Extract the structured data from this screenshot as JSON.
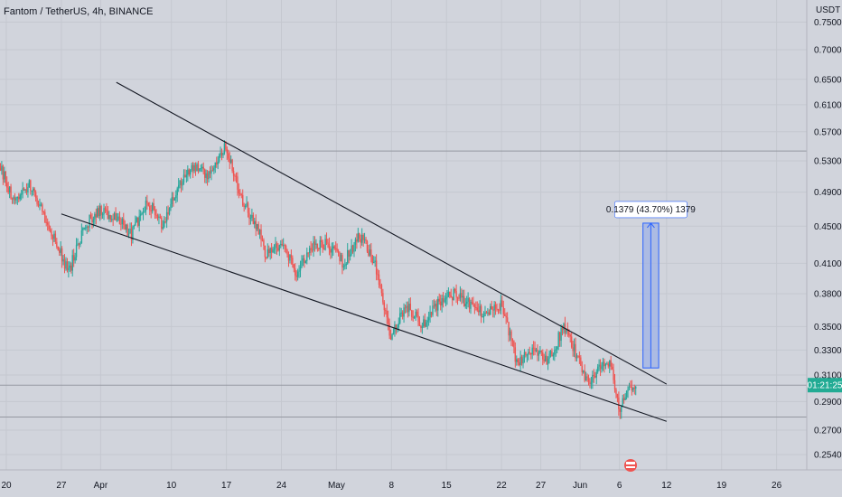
{
  "header": {
    "title": "Fantom / TetherUS, 4h, BINANCE"
  },
  "colors": {
    "background": "#d1d4dc",
    "up": "#26a69a",
    "down": "#ef5350",
    "trendline": "#131722",
    "hline": "#9598a1",
    "measure_fill": "#9cb0e6",
    "measure_stroke": "#2962ff",
    "price_label_bg": "#22ab94"
  },
  "chart_data": {
    "type": "candlestick",
    "symbol": "Fantom / TetherUS",
    "interval": "4h",
    "exchange": "BINANCE",
    "y_unit": "USDT",
    "y_scale": "log",
    "y_ticks": [
      "0.7500",
      "0.7000",
      "0.6500",
      "0.6100",
      "0.5700",
      "0.5300",
      "0.4900",
      "0.4500",
      "0.4100",
      "0.3800",
      "0.3500",
      "0.3300",
      "0.3100",
      "0.2900",
      "0.2700",
      "0.2540"
    ],
    "x_ticks": [
      {
        "label": "20",
        "date": "2022-03-20"
      },
      {
        "label": "27",
        "date": "2022-03-27"
      },
      {
        "label": "Apr",
        "date": "2022-04-01"
      },
      {
        "label": "10",
        "date": "2022-04-10"
      },
      {
        "label": "17",
        "date": "2022-04-17"
      },
      {
        "label": "24",
        "date": "2022-04-24"
      },
      {
        "label": "May",
        "date": "2022-05-01"
      },
      {
        "label": "8",
        "date": "2022-05-08"
      },
      {
        "label": "15",
        "date": "2022-05-15"
      },
      {
        "label": "22",
        "date": "2022-05-22"
      },
      {
        "label": "27",
        "date": "2022-05-27"
      },
      {
        "label": "Jun",
        "date": "2022-06-01"
      },
      {
        "label": "6",
        "date": "2022-06-06"
      },
      {
        "label": "12",
        "date": "2022-06-12"
      },
      {
        "label": "19",
        "date": "2022-06-19"
      },
      {
        "label": "26",
        "date": "2022-06-26"
      }
    ],
    "price_path": [
      [
        "2022-03-19",
        0.53
      ],
      [
        "2022-03-21",
        0.48
      ],
      [
        "2022-03-23",
        0.5
      ],
      [
        "2022-03-25",
        0.46
      ],
      [
        "2022-03-27",
        0.42
      ],
      [
        "2022-03-28",
        0.4
      ],
      [
        "2022-03-30",
        0.45
      ],
      [
        "2022-04-01",
        0.47
      ],
      [
        "2022-04-03",
        0.46
      ],
      [
        "2022-04-05",
        0.44
      ],
      [
        "2022-04-07",
        0.48
      ],
      [
        "2022-04-09",
        0.45
      ],
      [
        "2022-04-11",
        0.5
      ],
      [
        "2022-04-13",
        0.52
      ],
      [
        "2022-04-15",
        0.51
      ],
      [
        "2022-04-17",
        0.55
      ],
      [
        "2022-04-19",
        0.48
      ],
      [
        "2022-04-21",
        0.45
      ],
      [
        "2022-04-22",
        0.42
      ],
      [
        "2022-04-24",
        0.43
      ],
      [
        "2022-04-26",
        0.4
      ],
      [
        "2022-04-28",
        0.43
      ],
      [
        "2022-04-30",
        0.43
      ],
      [
        "2022-05-02",
        0.41
      ],
      [
        "2022-05-04",
        0.44
      ],
      [
        "2022-05-06",
        0.41
      ],
      [
        "2022-05-08",
        0.34
      ],
      [
        "2022-05-10",
        0.37
      ],
      [
        "2022-05-12",
        0.35
      ],
      [
        "2022-05-14",
        0.37
      ],
      [
        "2022-05-16",
        0.38
      ],
      [
        "2022-05-18",
        0.37
      ],
      [
        "2022-05-20",
        0.36
      ],
      [
        "2022-05-22",
        0.37
      ],
      [
        "2022-05-24",
        0.32
      ],
      [
        "2022-05-26",
        0.33
      ],
      [
        "2022-05-28",
        0.32
      ],
      [
        "2022-05-30",
        0.35
      ],
      [
        "2022-06-01",
        0.32
      ],
      [
        "2022-06-02",
        0.305
      ],
      [
        "2022-06-04",
        0.32
      ],
      [
        "2022-06-05",
        0.32
      ],
      [
        "2022-06-06",
        0.283
      ],
      [
        "2022-06-07",
        0.296
      ],
      [
        "2022-06-08",
        0.302
      ]
    ],
    "current_price": {
      "value": 0.3022,
      "label": "01:21:25"
    },
    "horizontal_lines": [
      0.5432,
      0.3022,
      0.279
    ],
    "trendlines": [
      {
        "name": "upper",
        "from": [
          "2022-04-03",
          0.645
        ],
        "to": [
          "2022-06-12",
          0.303
        ]
      },
      {
        "name": "lower",
        "from": [
          "2022-03-27",
          0.464
        ],
        "to": [
          "2022-06-12",
          0.276
        ]
      }
    ],
    "measure": {
      "from": [
        "2022-06-09",
        0.3155
      ],
      "to": [
        "2022-06-11",
        0.4534
      ],
      "label": "0.1379 (43.70%) 1379"
    }
  }
}
